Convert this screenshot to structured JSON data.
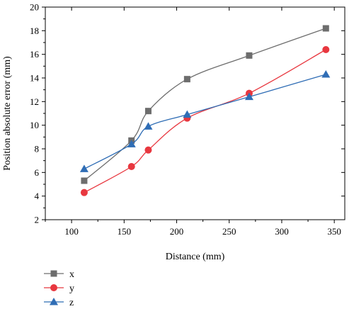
{
  "chart_data": {
    "type": "line",
    "xlabel": "Distance (mm)",
    "ylabel": "Position absolute error (mm)",
    "xlim": [
      75,
      360
    ],
    "ylim": [
      2,
      20
    ],
    "xticks": [
      100,
      150,
      200,
      250,
      300,
      350
    ],
    "yticks": [
      2,
      4,
      6,
      8,
      10,
      12,
      14,
      16,
      18,
      20
    ],
    "x": [
      112,
      157,
      173,
      210,
      269,
      342
    ],
    "legend_position": "bottom-left, below plot",
    "grid": false,
    "series": [
      {
        "name": "x",
        "values": [
          5.3,
          8.7,
          11.2,
          13.9,
          15.9,
          18.2
        ],
        "color": "#6d6d6d",
        "marker": "square"
      },
      {
        "name": "y",
        "values": [
          4.3,
          6.5,
          7.9,
          10.6,
          12.7,
          16.4
        ],
        "color": "#e8373f",
        "marker": "circle"
      },
      {
        "name": "z",
        "values": [
          6.3,
          8.4,
          9.9,
          10.9,
          12.4,
          14.3
        ],
        "color": "#2f6db5",
        "marker": "triangle"
      }
    ]
  }
}
